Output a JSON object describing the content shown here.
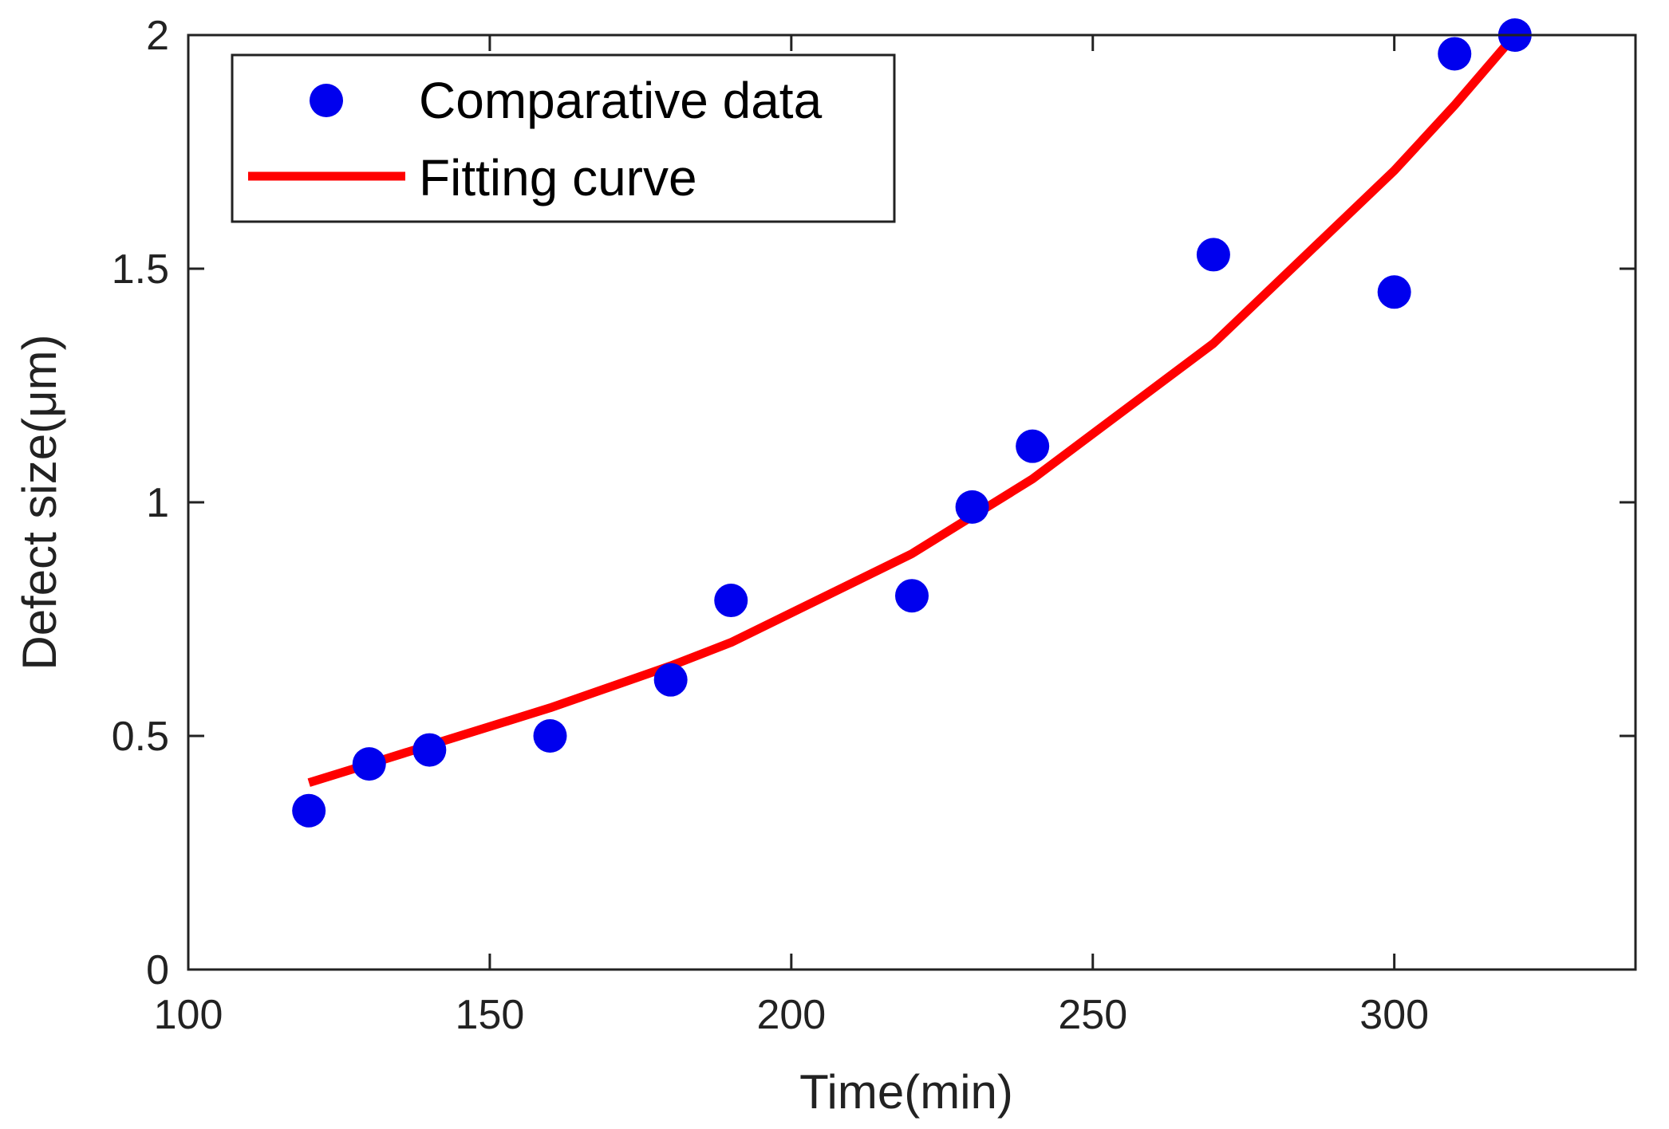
{
  "chart_data": {
    "type": "scatter",
    "title": "",
    "xlabel": "Time(min)",
    "ylabel": "Defect size(μm)",
    "xlim": [
      100,
      340
    ],
    "ylim": [
      0,
      2
    ],
    "xticks": [
      100,
      150,
      200,
      250,
      300
    ],
    "yticks": [
      0,
      0.5,
      1,
      1.5,
      2
    ],
    "xtick_labels": [
      "100",
      "150",
      "200",
      "250",
      "300"
    ],
    "ytick_labels": [
      "0",
      "0.5",
      "1",
      "1.5",
      "2"
    ],
    "grid": false,
    "legend_position": "top-left",
    "series": [
      {
        "name": "Comparative data",
        "kind": "scatter",
        "color": "#0000ee",
        "x": [
          120,
          130,
          140,
          160,
          180,
          190,
          220,
          230,
          240,
          270,
          300,
          310,
          320
        ],
        "y": [
          0.34,
          0.44,
          0.47,
          0.5,
          0.62,
          0.79,
          0.8,
          0.99,
          1.12,
          1.53,
          1.45,
          1.96,
          2.0
        ]
      },
      {
        "name": "Fitting curve",
        "kind": "line",
        "color": "#ff0000",
        "x": [
          120,
          130,
          140,
          160,
          180,
          190,
          220,
          230,
          240,
          270,
          300,
          310,
          320
        ],
        "y": [
          0.4,
          0.44,
          0.48,
          0.56,
          0.65,
          0.7,
          0.89,
          0.97,
          1.05,
          1.34,
          1.71,
          1.85,
          2.0
        ]
      }
    ]
  }
}
